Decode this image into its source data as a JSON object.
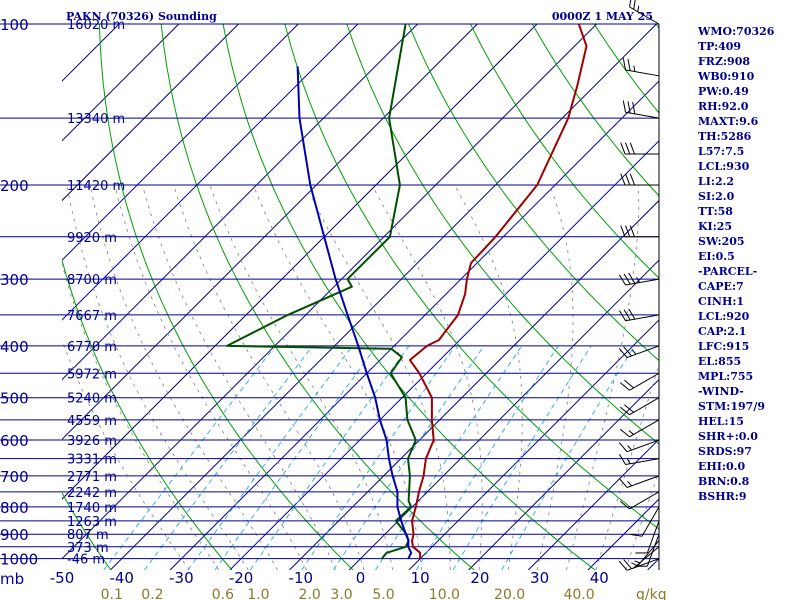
{
  "chart_data": {
    "type": "line",
    "title_left": "PAKN (70326) Sounding",
    "title_right": "0000Z  1 MAY 25",
    "pressure_axis_unit": "mb",
    "pressure_ticks": [
      100,
      200,
      300,
      400,
      500,
      600,
      700,
      800,
      900,
      1000
    ],
    "isobars": [
      100,
      150,
      200,
      250,
      300,
      350,
      400,
      450,
      500,
      550,
      600,
      650,
      700,
      750,
      800,
      850,
      900,
      950,
      1000
    ],
    "height_labels": [
      {
        "p": 100,
        "text": "16020 m"
      },
      {
        "p": 150,
        "text": "13340 m"
      },
      {
        "p": 200,
        "text": "11420 m"
      },
      {
        "p": 250,
        "text": "9920 m"
      },
      {
        "p": 300,
        "text": "8700 m"
      },
      {
        "p": 350,
        "text": "7667 m"
      },
      {
        "p": 400,
        "text": "6770 m"
      },
      {
        "p": 450,
        "text": "5972 m"
      },
      {
        "p": 500,
        "text": "5240 m"
      },
      {
        "p": 550,
        "text": "4559 m"
      },
      {
        "p": 600,
        "text": "3926 m"
      },
      {
        "p": 650,
        "text": "3331 m"
      },
      {
        "p": 700,
        "text": "2771 m"
      },
      {
        "p": 750,
        "text": "2242 m"
      },
      {
        "p": 800,
        "text": "1740 m"
      },
      {
        "p": 850,
        "text": "1263 m"
      },
      {
        "p": 900,
        "text": "807 m"
      },
      {
        "p": 950,
        "text": "373 m"
      },
      {
        "p": 1000,
        "text": "-46 m"
      }
    ],
    "temperature_ticks": [
      -50,
      -40,
      -30,
      -20,
      -10,
      0,
      10,
      20,
      30,
      40
    ],
    "temperature_tick_labels": [
      "-50",
      "-40",
      "-30",
      "-20",
      "-10",
      "0",
      "10",
      "20",
      "30",
      "40"
    ],
    "mixing_ratio_labels": [
      "0.1",
      "0.2",
      "0.6",
      "1.0",
      "2.0",
      "3.0",
      "5.0",
      "10.0",
      "20.0",
      "40.0"
    ],
    "mixing_ratio_values": [
      0.1,
      0.2,
      0.6,
      1.0,
      2.0,
      3.0,
      5.0,
      10.0,
      20.0,
      40.0
    ],
    "mixing_ratio_unit": "g/kg",
    "lines": [
      0.1,
      0.2,
      0.4,
      0.6,
      1.0,
      2.0,
      3.0,
      5.0,
      8.0,
      12.0,
      20.0
    ],
    "dry_adiabats_theta_K": [
      210,
      230,
      250,
      270,
      290,
      310,
      330,
      350,
      370,
      390,
      410,
      430,
      450,
      470,
      490,
      510,
      530,
      550,
      570,
      590,
      610,
      630,
      650
    ],
    "moist_adiabats_C": [
      -30,
      -25,
      -20,
      -15,
      -10,
      -5,
      0,
      5,
      10,
      15,
      20,
      25,
      30,
      35,
      40,
      45
    ],
    "series": [
      {
        "role": "temperature",
        "color": "#a00000",
        "points": [
          {
            "p": 1000,
            "t": 10.0
          },
          {
            "p": 975,
            "t": 9.0
          },
          {
            "p": 950,
            "t": 6.8
          },
          {
            "p": 925,
            "t": 5.6
          },
          {
            "p": 900,
            "t": 4.8
          },
          {
            "p": 850,
            "t": 2.3
          },
          {
            "p": 800,
            "t": 0.6
          },
          {
            "p": 750,
            "t": -1.4
          },
          {
            "p": 700,
            "t": -3.3
          },
          {
            "p": 650,
            "t": -5.8
          },
          {
            "p": 600,
            "t": -7.6
          },
          {
            "p": 550,
            "t": -11.3
          },
          {
            "p": 500,
            "t": -15.0
          },
          {
            "p": 450,
            "t": -21.2
          },
          {
            "p": 425,
            "t": -25.0
          },
          {
            "p": 400,
            "t": -24.5
          },
          {
            "p": 390,
            "t": -23.5
          },
          {
            "p": 350,
            "t": -24.5
          },
          {
            "p": 320,
            "t": -26.8
          },
          {
            "p": 300,
            "t": -29.0
          },
          {
            "p": 280,
            "t": -31.0
          },
          {
            "p": 250,
            "t": -31.3
          },
          {
            "p": 200,
            "t": -33.0
          },
          {
            "p": 150,
            "t": -39.0
          },
          {
            "p": 130,
            "t": -43.0
          },
          {
            "p": 110,
            "t": -48.0
          },
          {
            "p": 100,
            "t": -53.0
          }
        ]
      },
      {
        "role": "dewpoint",
        "color": "#005000",
        "points": [
          {
            "p": 1000,
            "t": 3.6
          },
          {
            "p": 990,
            "t": 3.5
          },
          {
            "p": 975,
            "t": 3.4
          },
          {
            "p": 950,
            "t": 5.6
          },
          {
            "p": 925,
            "t": 5.0
          },
          {
            "p": 900,
            "t": 3.6
          },
          {
            "p": 850,
            "t": -0.4
          },
          {
            "p": 800,
            "t": -0.2
          },
          {
            "p": 780,
            "t": -1.6
          },
          {
            "p": 700,
            "t": -5.6
          },
          {
            "p": 650,
            "t": -8.8
          },
          {
            "p": 600,
            "t": -10.6
          },
          {
            "p": 550,
            "t": -15.4
          },
          {
            "p": 500,
            "t": -19.4
          },
          {
            "p": 450,
            "t": -26.0
          },
          {
            "p": 420,
            "t": -26.8
          },
          {
            "p": 405,
            "t": -30.0
          },
          {
            "p": 400,
            "t": -58.0
          },
          {
            "p": 350,
            "t": -53.0
          },
          {
            "p": 310,
            "t": -47.0
          },
          {
            "p": 300,
            "t": -49.0
          },
          {
            "p": 250,
            "t": -49.0
          },
          {
            "p": 200,
            "t": -56.0
          },
          {
            "p": 150,
            "t": -69.0
          },
          {
            "p": 100,
            "t": -82.0
          }
        ]
      },
      {
        "role": "parcel",
        "color": "#0000b0",
        "points": [
          {
            "p": 1000,
            "t": 8.0
          },
          {
            "p": 975,
            "t": 7.5
          },
          {
            "p": 950,
            "t": 6.0
          },
          {
            "p": 925,
            "t": 5.0
          },
          {
            "p": 900,
            "t": 3.5
          },
          {
            "p": 850,
            "t": 0.5
          },
          {
            "p": 800,
            "t": -2.5
          },
          {
            "p": 750,
            "t": -5.0
          },
          {
            "p": 700,
            "t": -8.5
          },
          {
            "p": 650,
            "t": -12.0
          },
          {
            "p": 600,
            "t": -15.5
          },
          {
            "p": 550,
            "t": -20.0
          },
          {
            "p": 500,
            "t": -24.5
          },
          {
            "p": 450,
            "t": -30.0
          },
          {
            "p": 400,
            "t": -36.0
          },
          {
            "p": 350,
            "t": -43.0
          },
          {
            "p": 300,
            "t": -51.0
          },
          {
            "p": 250,
            "t": -60.0
          },
          {
            "p": 200,
            "t": -71.0
          },
          {
            "p": 150,
            "t": -84.0
          },
          {
            "p": 120,
            "t": -93.0
          }
        ]
      }
    ],
    "wind_barbs": [
      {
        "p": 1000,
        "dir": 250,
        "spd": 20
      },
      {
        "p": 950,
        "dir": 230,
        "spd": 5
      },
      {
        "p": 925,
        "dir": 220,
        "spd": 5
      },
      {
        "p": 900,
        "dir": 200,
        "spd": 10
      },
      {
        "p": 850,
        "dir": 200,
        "spd": 10
      },
      {
        "p": 800,
        "dir": 210,
        "spd": 10
      },
      {
        "p": 750,
        "dir": 240,
        "spd": 10
      },
      {
        "p": 700,
        "dir": 250,
        "spd": 15
      },
      {
        "p": 650,
        "dir": 260,
        "spd": 15
      },
      {
        "p": 600,
        "dir": 250,
        "spd": 15
      },
      {
        "p": 550,
        "dir": 240,
        "spd": 15
      },
      {
        "p": 500,
        "dir": 240,
        "spd": 20
      },
      {
        "p": 450,
        "dir": 240,
        "spd": 20
      },
      {
        "p": 400,
        "dir": 250,
        "spd": 25
      },
      {
        "p": 350,
        "dir": 260,
        "spd": 30
      },
      {
        "p": 300,
        "dir": 260,
        "spd": 35
      },
      {
        "p": 250,
        "dir": 270,
        "spd": 30
      },
      {
        "p": 200,
        "dir": 270,
        "spd": 30
      },
      {
        "p": 175,
        "dir": 270,
        "spd": 30
      },
      {
        "p": 150,
        "dir": 280,
        "spd": 30
      },
      {
        "p": 125,
        "dir": 280,
        "spd": 25
      },
      {
        "p": 100,
        "dir": 300,
        "spd": 25
      }
    ],
    "indices": [
      "WMO:70326",
      "TP:409",
      "FRZ:908",
      "WB0:910",
      "PW:0.49",
      "RH:92.0",
      "MAXT:9.6",
      "TH:5286",
      "L57:7.5",
      "LCL:930",
      "LI:2.2",
      "SI:2.0",
      "TT:58",
      "KI:25",
      "SW:205",
      "EI:0.5",
      "-PARCEL-",
      "CAPE:7",
      "CINH:1",
      "LCL:920",
      "CAP:2.1",
      "LFC:915",
      "EL:855",
      "MPL:755",
      "-WIND-",
      "STM:197/9",
      "HEL:15",
      "SHR+:0.0",
      "SRDS:97",
      "EHI:0.0",
      "BRN:0.8",
      "BSHR:9"
    ],
    "colors": {
      "isobar": "#000090",
      "isotherm": "#000090",
      "dry_adiabat": "#00a000",
      "moist_adiabat": "#808080",
      "mixing_ratio": "#3ab0e8",
      "barb": "#000000"
    }
  }
}
